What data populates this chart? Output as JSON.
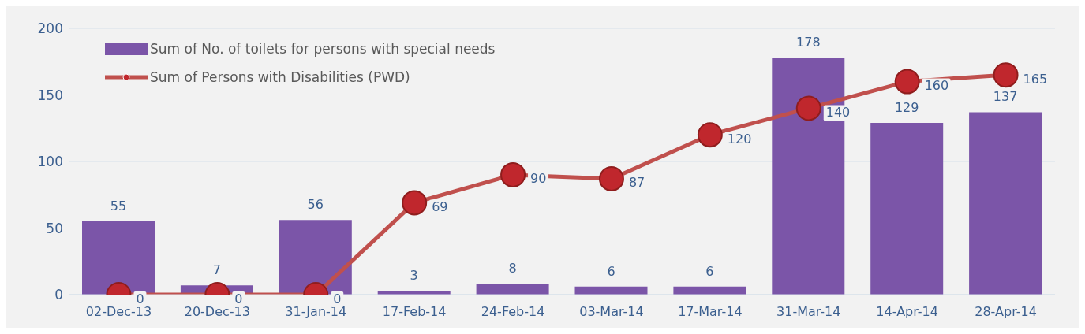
{
  "chart_data": {
    "type": "bar",
    "categories": [
      "02-Dec-13",
      "20-Dec-13",
      "31-Jan-14",
      "17-Feb-14",
      "24-Feb-14",
      "03-Mar-14",
      "17-Mar-14",
      "31-Mar-14",
      "14-Apr-14",
      "28-Apr-14"
    ],
    "series": [
      {
        "name": "Sum of No. of toilets for persons with special needs",
        "color": "#7b55a8",
        "values": [
          55,
          7,
          56,
          3,
          8,
          6,
          6,
          178,
          129,
          137
        ]
      },
      {
        "name": "Sum of Persons with Disabilities (PWD)",
        "type": "line",
        "color": "#c0504d",
        "values": [
          0,
          0,
          0,
          69,
          90,
          87,
          120,
          140,
          160,
          165
        ]
      }
    ],
    "ylim": [
      0,
      200
    ],
    "yticks": [
      0,
      50,
      100,
      150,
      200
    ],
    "grid": "y",
    "legend": "top left",
    "marker": "circle",
    "line_style": "solid",
    "data_labels": true
  }
}
